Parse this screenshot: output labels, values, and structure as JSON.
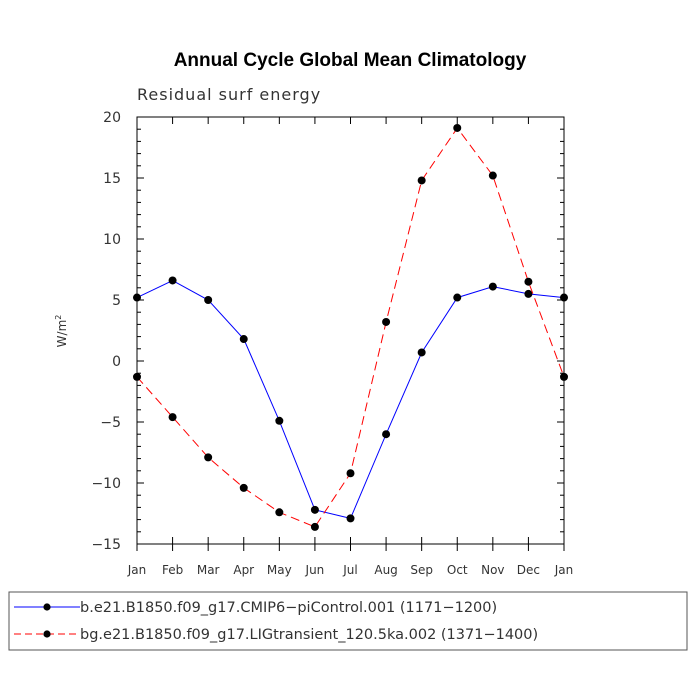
{
  "chart_data": {
    "type": "line",
    "title": "Annual Cycle Global Mean Climatology",
    "subtitle": "Residual surf energy",
    "xlabel": "",
    "ylabel": "W/m",
    "ylabel_superscript": "2",
    "categories": [
      "Jan",
      "Feb",
      "Mar",
      "Apr",
      "May",
      "Jun",
      "Jul",
      "Aug",
      "Sep",
      "Oct",
      "Nov",
      "Dec",
      "Jan"
    ],
    "ylim": [
      -15,
      20
    ],
    "yticks": [
      -15,
      -10,
      -5,
      0,
      5,
      10,
      15,
      20
    ],
    "ytick_labels": [
      "−15",
      "−10",
      "−5",
      "0",
      "5",
      "10",
      "15",
      "20"
    ],
    "series": [
      {
        "name": "b.e21.B1850.f09_g17.CMIP6−piControl.001 (1171−1200)",
        "color": "#0000ff",
        "dash": "solid",
        "values": [
          5.2,
          6.6,
          5.0,
          1.8,
          -4.9,
          -12.2,
          -12.9,
          -6.0,
          0.7,
          5.2,
          6.1,
          5.5,
          5.2
        ]
      },
      {
        "name": "bg.e21.B1850.f09_g17.LIGtransient_120.5ka.002 (1371−1400)",
        "color": "#ff0000",
        "dash": "dashed",
        "values": [
          -1.3,
          -4.6,
          -7.9,
          -10.4,
          -12.4,
          -13.6,
          -9.2,
          3.2,
          14.8,
          19.1,
          15.2,
          6.5,
          -1.3
        ]
      }
    ],
    "legend_position": "bottom"
  }
}
